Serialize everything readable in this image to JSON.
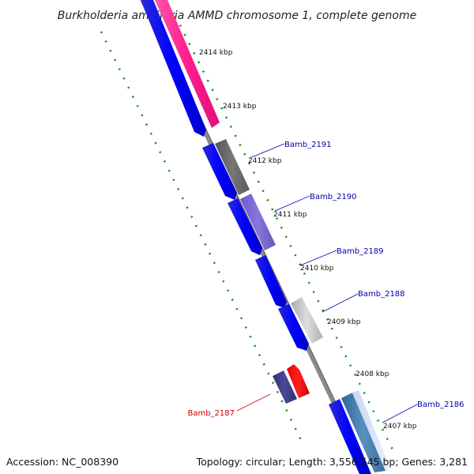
{
  "title": "Burkholderia ambifaria AMMD chromosome 1, complete genome",
  "colors": {
    "backbone": "#8a8a8a",
    "tick": "#118811",
    "forward_label": "#0000aa",
    "reverse_label": "#cc0000"
  },
  "kbp_ticks": [
    {
      "label": "2414 kbp"
    },
    {
      "label": "2413 kbp"
    },
    {
      "label": "2412 kbp"
    },
    {
      "label": "2411 kbp"
    },
    {
      "label": "2410 kbp"
    },
    {
      "label": "2409 kbp"
    },
    {
      "label": "2408 kbp"
    },
    {
      "label": "2407 kbp"
    }
  ],
  "genes": [
    {
      "id": "Bamb_2191",
      "color": "#666666"
    },
    {
      "id": "Bamb_2190",
      "color": "#7766cc"
    },
    {
      "id": "Bamb_2189",
      "color": "#0000ee"
    },
    {
      "id": "Bamb_2188",
      "color": "#bbbbbb"
    },
    {
      "id": "Bamb_2187",
      "color": "#ff0000"
    },
    {
      "id": "Bamb_2186",
      "color": "#4488bb"
    }
  ],
  "footer": {
    "accession": "Accession: NC_008390",
    "topology": "Topology: circular; Length: 3,556,545 bp; Genes: 3,281"
  }
}
